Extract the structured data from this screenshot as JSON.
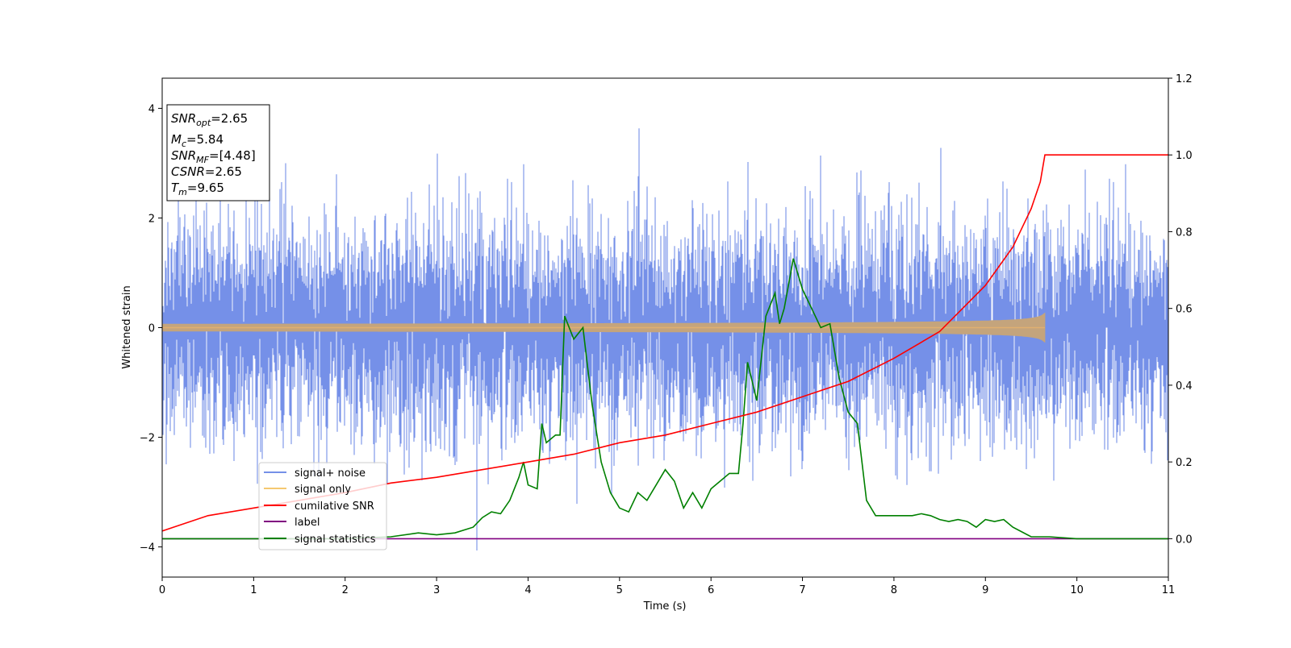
{
  "chart_data": {
    "type": "line",
    "xlabel": "Time (s)",
    "ylabel_left": "Whitened strain",
    "ylabel_right": "",
    "xlim": [
      0,
      11
    ],
    "ylim_left": [
      -4.55,
      4.55
    ],
    "ylim_right": [
      -0.1,
      1.2
    ],
    "x_ticks": [
      0,
      1,
      2,
      3,
      4,
      5,
      6,
      7,
      8,
      9,
      10,
      11
    ],
    "y_left_ticks": [
      -4,
      -2,
      0,
      2,
      4
    ],
    "y_right_ticks": [
      0.0,
      0.2,
      0.4,
      0.6,
      0.8,
      1.0,
      1.2
    ],
    "x_tick_labels": [
      "0",
      "1",
      "2",
      "3",
      "4",
      "5",
      "6",
      "7",
      "8",
      "9",
      "10",
      "11"
    ],
    "y_left_tick_labels": [
      "−4",
      "−2",
      "0",
      "2",
      "4"
    ],
    "y_right_tick_labels": [
      "0.0",
      "0.2",
      "0.4",
      "0.6",
      "0.8",
      "1.0",
      "1.2"
    ],
    "grid": false,
    "legend_position": "lower-left",
    "info_box": {
      "snr_opt": {
        "base": "SNR",
        "sub": "opt",
        "value": "=2.65"
      },
      "mc": {
        "base": "M",
        "sub": "c",
        "value": "=5.84"
      },
      "snr_mf": {
        "base": "SNR",
        "sub": "MF",
        "value": "=[4.48]"
      },
      "csnr": {
        "base": "CSNR",
        "sub": "",
        "value": "=2.65"
      },
      "tm": {
        "base": "T",
        "sub": "m",
        "value": "=9.65"
      }
    },
    "series": [
      {
        "name": "signal+ noise",
        "color": "#7590e8",
        "axis": "left",
        "kind": "noise",
        "amplitude_std": 0.95,
        "peak_max": 4.15,
        "x_range": [
          0,
          11
        ]
      },
      {
        "name": "signal only",
        "color": "#f5c870",
        "axis": "left",
        "kind": "chirp",
        "merger_time": 9.65,
        "final_amplitude": 0.27
      },
      {
        "name": "cumilative SNR",
        "color": "#ff0000",
        "axis": "right",
        "x": [
          0,
          0.5,
          1,
          1.5,
          2,
          2.5,
          3,
          3.5,
          4,
          4.5,
          5,
          5.5,
          6,
          6.5,
          7,
          7.5,
          8,
          8.5,
          9,
          9.3,
          9.5,
          9.6,
          9.65,
          11
        ],
        "y": [
          0.02,
          0.06,
          0.08,
          0.1,
          0.12,
          0.145,
          0.16,
          0.18,
          0.2,
          0.22,
          0.25,
          0.27,
          0.3,
          0.33,
          0.37,
          0.41,
          0.47,
          0.54,
          0.66,
          0.76,
          0.86,
          0.93,
          1.0,
          1.0
        ]
      },
      {
        "name": "label",
        "color": "#800080",
        "axis": "right",
        "x": [
          0,
          11
        ],
        "y": [
          0.0,
          0.0
        ]
      },
      {
        "name": "signal statistics",
        "color": "#008000",
        "axis": "right",
        "x": [
          0,
          1,
          2,
          2.5,
          2.8,
          3,
          3.2,
          3.4,
          3.5,
          3.6,
          3.7,
          3.8,
          3.9,
          3.95,
          4.0,
          4.1,
          4.15,
          4.2,
          4.3,
          4.35,
          4.4,
          4.5,
          4.6,
          4.65,
          4.7,
          4.8,
          4.9,
          5.0,
          5.1,
          5.2,
          5.3,
          5.4,
          5.5,
          5.6,
          5.7,
          5.8,
          5.9,
          6.0,
          6.1,
          6.2,
          6.3,
          6.35,
          6.4,
          6.5,
          6.6,
          6.7,
          6.75,
          6.8,
          6.9,
          7.0,
          7.1,
          7.2,
          7.3,
          7.4,
          7.5,
          7.6,
          7.7,
          7.8,
          8.0,
          8.2,
          8.3,
          8.4,
          8.5,
          8.6,
          8.7,
          8.8,
          8.9,
          9.0,
          9.1,
          9.2,
          9.3,
          9.5,
          9.7,
          10.0,
          11.0
        ],
        "y": [
          0.0,
          0.0,
          0.0,
          0.005,
          0.015,
          0.01,
          0.015,
          0.03,
          0.055,
          0.07,
          0.065,
          0.1,
          0.16,
          0.2,
          0.14,
          0.13,
          0.3,
          0.25,
          0.27,
          0.27,
          0.58,
          0.52,
          0.55,
          0.45,
          0.35,
          0.2,
          0.12,
          0.08,
          0.07,
          0.12,
          0.1,
          0.14,
          0.18,
          0.15,
          0.08,
          0.12,
          0.08,
          0.13,
          0.15,
          0.17,
          0.17,
          0.3,
          0.46,
          0.36,
          0.58,
          0.64,
          0.56,
          0.6,
          0.73,
          0.65,
          0.6,
          0.55,
          0.56,
          0.42,
          0.33,
          0.3,
          0.1,
          0.06,
          0.06,
          0.06,
          0.065,
          0.06,
          0.05,
          0.045,
          0.05,
          0.045,
          0.03,
          0.05,
          0.045,
          0.05,
          0.03,
          0.005,
          0.005,
          0.0,
          0.0
        ]
      }
    ]
  }
}
